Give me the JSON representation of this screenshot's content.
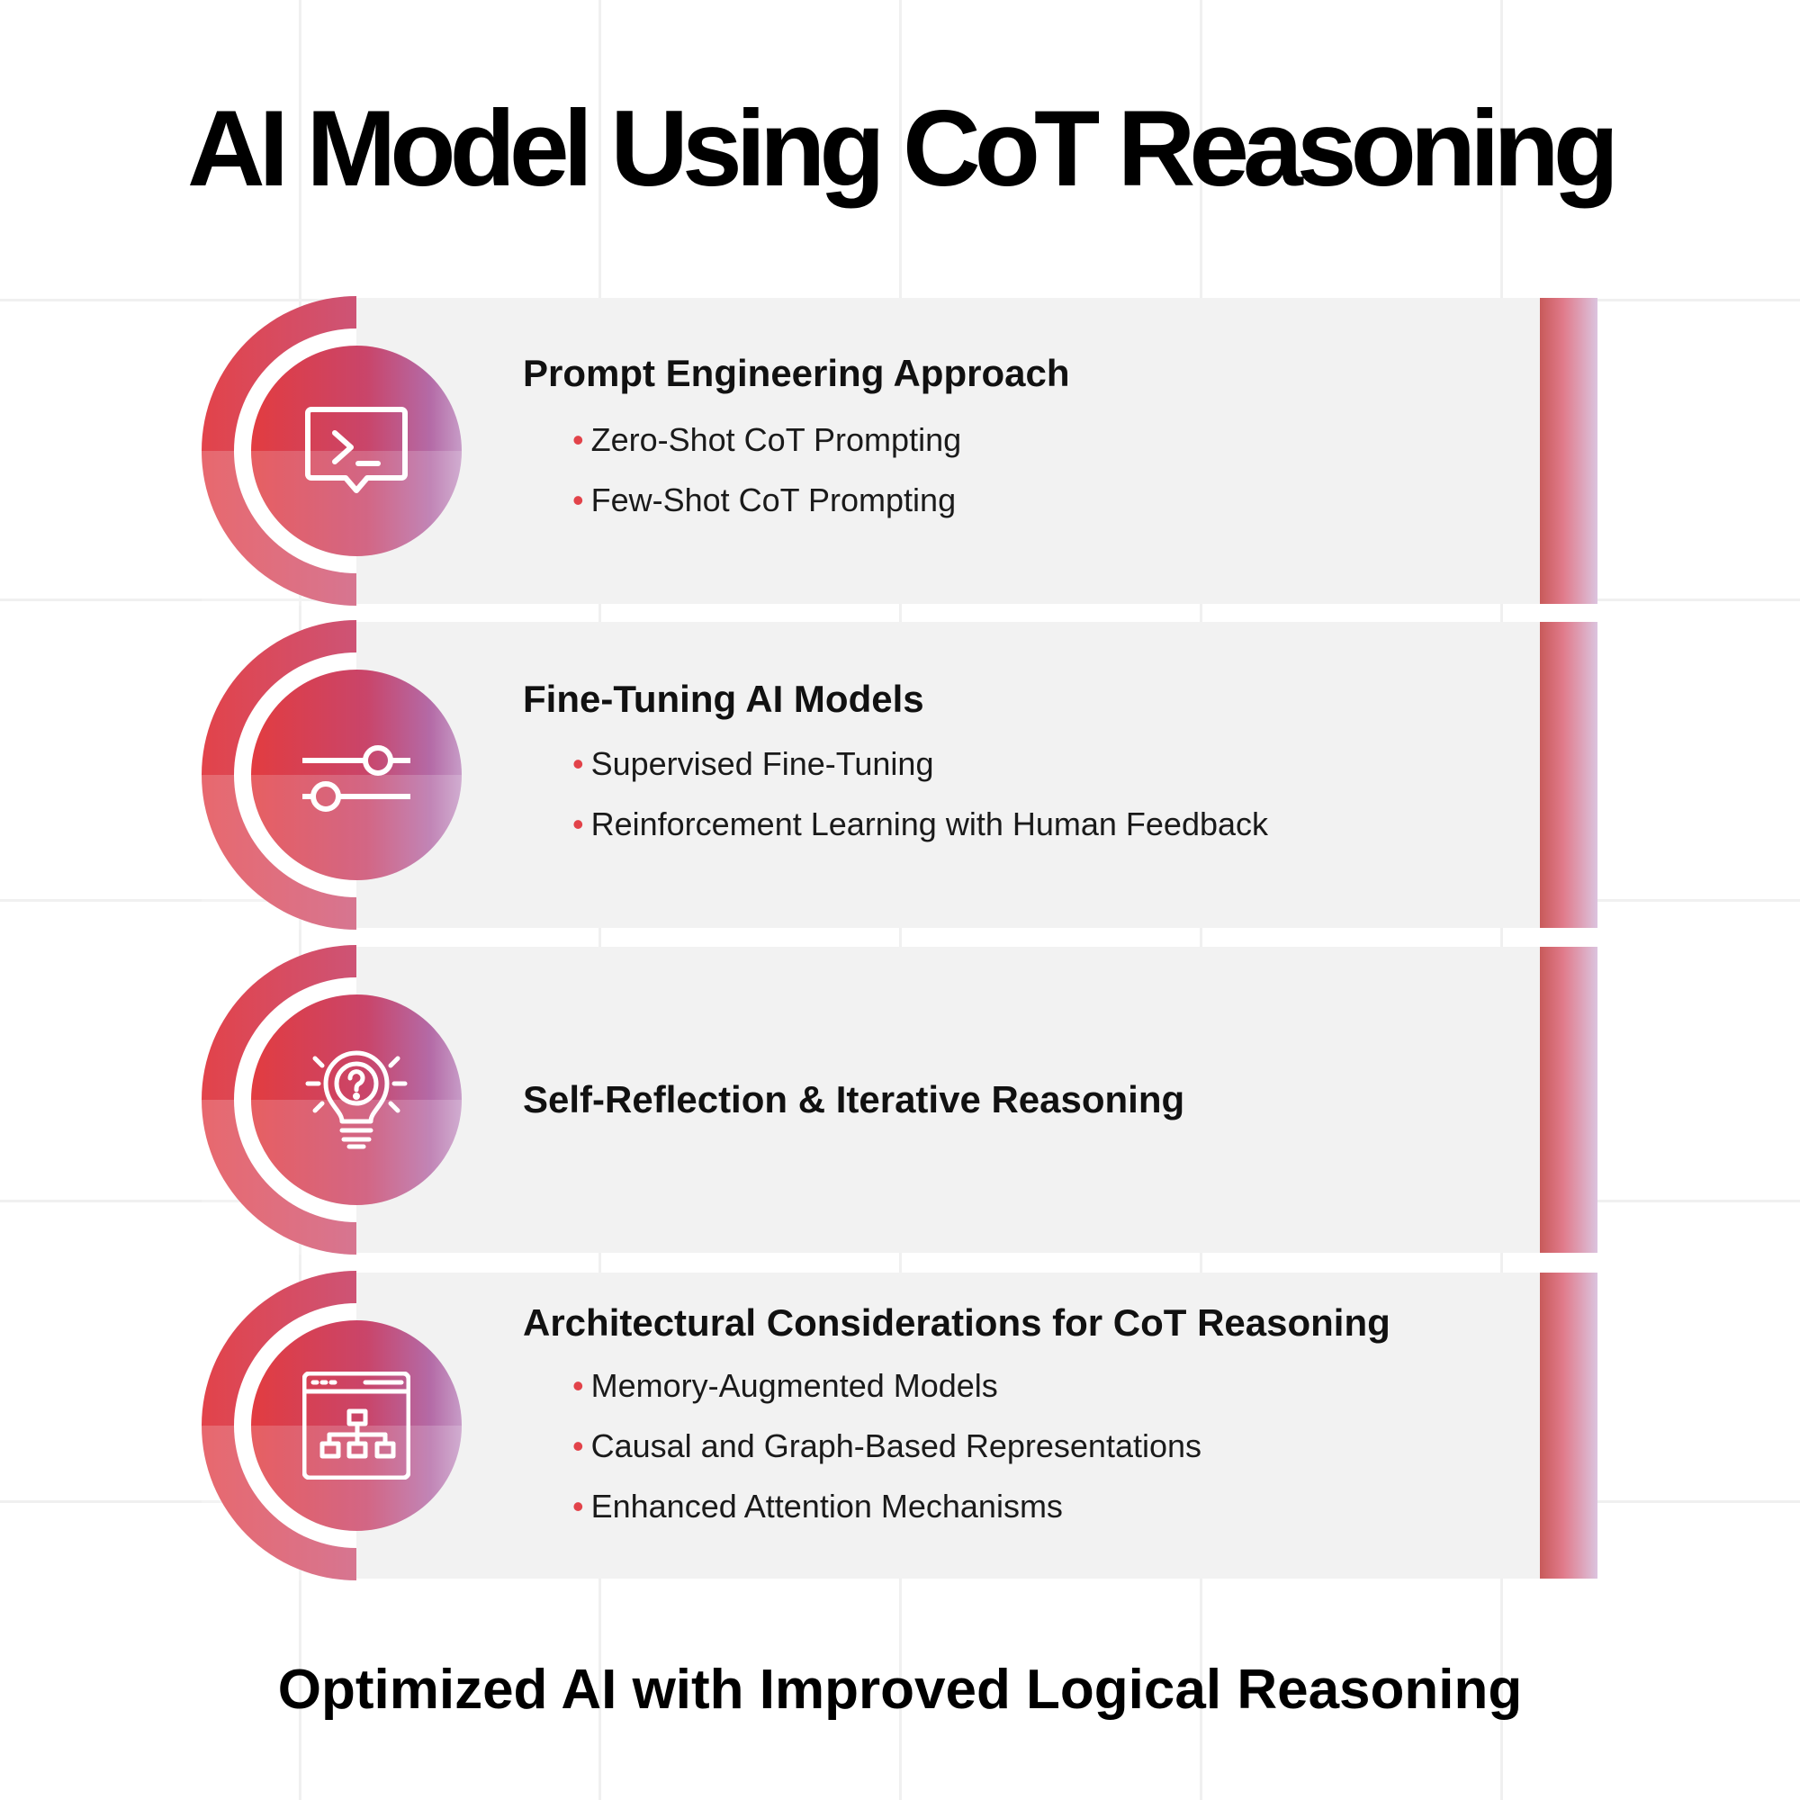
{
  "title": "AI Model Using CoT Reasoning",
  "colors": {
    "accent_red": "#e2434a",
    "accent_purple": "#b46aa6",
    "card_bg": "#f2f2f2"
  },
  "steps": [
    {
      "icon": "terminal-chat-icon",
      "heading": "Prompt Engineering Approach",
      "bullets": [
        "Zero-Shot CoT Prompting",
        "Few-Shot CoT Prompting"
      ]
    },
    {
      "icon": "sliders-icon",
      "heading": "Fine-Tuning AI Models",
      "bullets": [
        "Supervised Fine-Tuning",
        "Reinforcement Learning with Human Feedback"
      ]
    },
    {
      "icon": "lightbulb-question-icon",
      "heading": "Self-Reflection & Iterative Reasoning",
      "bullets": []
    },
    {
      "icon": "sitemap-window-icon",
      "heading": "Architectural Considerations for CoT Reasoning",
      "bullets": [
        "Memory-Augmented Models",
        "Causal and Graph-Based Representations",
        "Enhanced Attention Mechanisms"
      ]
    }
  ],
  "footer": "Optimized AI with Improved Logical Reasoning"
}
